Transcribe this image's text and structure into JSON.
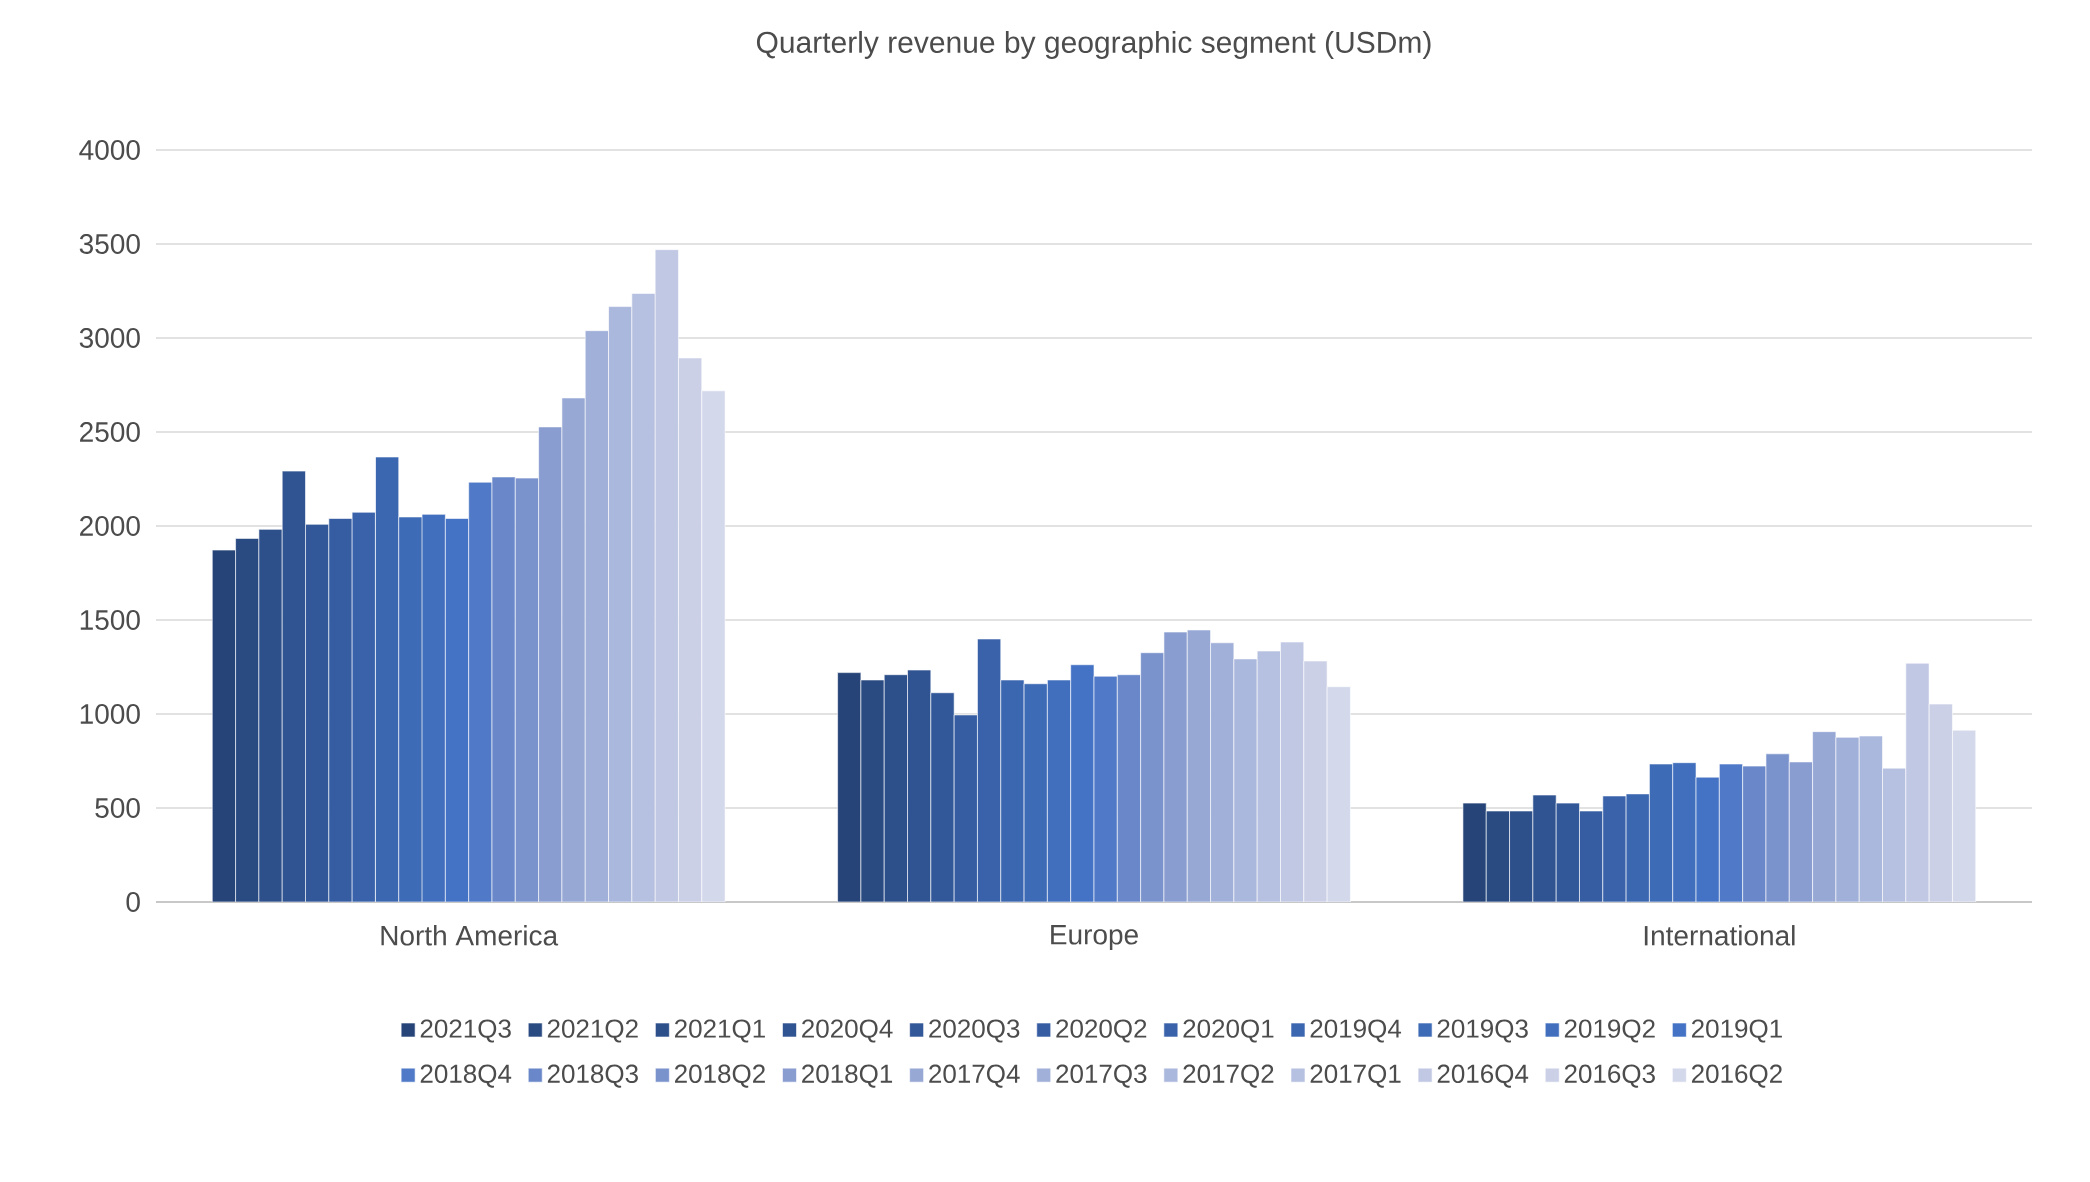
{
  "chart_data": {
    "type": "bar",
    "title": "Quarterly revenue by geographic segment (USDm)",
    "categories": [
      "North America",
      "Europe",
      "International"
    ],
    "ylim": [
      0,
      4000
    ],
    "yticks": [
      0,
      500,
      1000,
      1500,
      2000,
      2500,
      3000,
      3500,
      4000
    ],
    "grid": "y",
    "legend": "bottom",
    "series": [
      {
        "name": "2021Q3",
        "color": "#264478",
        "values": [
          1872,
          1220,
          526
        ]
      },
      {
        "name": "2021Q2",
        "color": "#2A4A82",
        "values": [
          1934,
          1181,
          484
        ]
      },
      {
        "name": "2021Q1",
        "color": "#2D4F8A",
        "values": [
          1982,
          1209,
          484
        ]
      },
      {
        "name": "2020Q4",
        "color": "#305391",
        "values": [
          2292,
          1234,
          569
        ]
      },
      {
        "name": "2020Q3",
        "color": "#335899",
        "values": [
          2009,
          1113,
          526
        ]
      },
      {
        "name": "2020Q2",
        "color": "#365DA2",
        "values": [
          2040,
          995,
          484
        ]
      },
      {
        "name": "2020Q1",
        "color": "#3962AA",
        "values": [
          2073,
          1399,
          564
        ]
      },
      {
        "name": "2019Q4",
        "color": "#3B66B0",
        "values": [
          2367,
          1181,
          575
        ]
      },
      {
        "name": "2019Q3",
        "color": "#3E6BB6",
        "values": [
          2048,
          1161,
          734
        ]
      },
      {
        "name": "2019Q2",
        "color": "#416FBD",
        "values": [
          2062,
          1181,
          741
        ]
      },
      {
        "name": "2019Q1",
        "color": "#4472C4",
        "values": [
          2040,
          1262,
          664
        ]
      },
      {
        "name": "2018Q4",
        "color": "#5079C7",
        "values": [
          2233,
          1201,
          734
        ]
      },
      {
        "name": "2018Q3",
        "color": "#6A88C9",
        "values": [
          2261,
          1209,
          723
        ]
      },
      {
        "name": "2018Q2",
        "color": "#7B93CD",
        "values": [
          2255,
          1326,
          788
        ]
      },
      {
        "name": "2018Q1",
        "color": "#8A9DD0",
        "values": [
          2527,
          1436,
          745
        ]
      },
      {
        "name": "2017Q4",
        "color": "#97A8D5",
        "values": [
          2681,
          1447,
          906
        ]
      },
      {
        "name": "2017Q3",
        "color": "#A1B0D9",
        "values": [
          3039,
          1379,
          876
        ]
      },
      {
        "name": "2017Q2",
        "color": "#ABB8DD",
        "values": [
          3167,
          1293,
          883
        ]
      },
      {
        "name": "2017Q1",
        "color": "#B6C0E0",
        "values": [
          3237,
          1335,
          712
        ]
      },
      {
        "name": "2016Q4",
        "color": "#C1C8E4",
        "values": [
          3470,
          1383,
          1270
        ]
      },
      {
        "name": "2016Q3",
        "color": "#CBD0E7",
        "values": [
          2894,
          1282,
          1053
        ]
      },
      {
        "name": "2016Q2",
        "color": "#D3D8EB",
        "values": [
          2719,
          1145,
          914
        ]
      }
    ]
  }
}
